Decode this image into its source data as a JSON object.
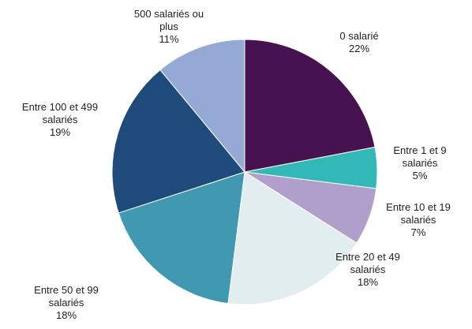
{
  "chart_data": {
    "type": "pie",
    "categories": [
      "0 salarié",
      "Entre 1 et 9 salariés",
      "Entre 10 et 19 salariés",
      "Entre 20 et 49 salariés",
      "Entre 50 et 99 salariés",
      "Entre 100 et 499 salariés",
      "500 salariés ou plus"
    ],
    "values": [
      22,
      5,
      7,
      18,
      18,
      19,
      11
    ],
    "value_labels": [
      "22%",
      "5%",
      "7%",
      "18%",
      "18%",
      "19%",
      "11%"
    ],
    "colors": [
      "#471250",
      "#33b8b8",
      "#b09fcb",
      "#e2edf0",
      "#4099b0",
      "#1f4a7c",
      "#94a9d3"
    ]
  }
}
